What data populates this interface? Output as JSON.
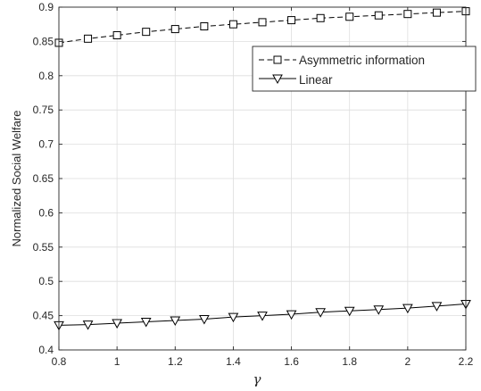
{
  "chart_data": {
    "type": "line",
    "title": "",
    "xlabel": "γ",
    "ylabel": "Normalized Social Welfare",
    "xlim": [
      0.8,
      2.2
    ],
    "ylim": [
      0.4,
      0.9
    ],
    "grid": true,
    "legend_position": "top-right",
    "x_ticks": [
      0.8,
      1,
      1.2,
      1.4,
      1.6,
      1.8,
      2,
      2.2
    ],
    "x_tick_labels": [
      "0.8",
      "1",
      "1.2",
      "1.4",
      "1.6",
      "1.8",
      "2",
      "2.2"
    ],
    "y_ticks": [
      0.4,
      0.45,
      0.5,
      0.55,
      0.6,
      0.65,
      0.7,
      0.75,
      0.8,
      0.85,
      0.9
    ],
    "y_tick_labels": [
      "0.4",
      "0.45",
      "0.5",
      "0.55",
      "0.6",
      "0.65",
      "0.7",
      "0.75",
      "0.8",
      "0.85",
      "0.9"
    ],
    "x": [
      0.8,
      0.9,
      1.0,
      1.1,
      1.2,
      1.3,
      1.4,
      1.5,
      1.6,
      1.7,
      1.8,
      1.9,
      2.0,
      2.1,
      2.2
    ],
    "series": [
      {
        "name": "Asymmetric information",
        "line_style": "dashed",
        "marker": "square",
        "color": "#000000",
        "values": [
          0.848,
          0.854,
          0.859,
          0.864,
          0.868,
          0.872,
          0.875,
          0.878,
          0.881,
          0.884,
          0.886,
          0.888,
          0.89,
          0.892,
          0.894
        ]
      },
      {
        "name": "Linear",
        "line_style": "solid",
        "marker": "triangle-down",
        "color": "#000000",
        "values": [
          0.436,
          0.437,
          0.439,
          0.441,
          0.443,
          0.445,
          0.448,
          0.45,
          0.452,
          0.455,
          0.457,
          0.459,
          0.461,
          0.464,
          0.467
        ]
      }
    ]
  }
}
